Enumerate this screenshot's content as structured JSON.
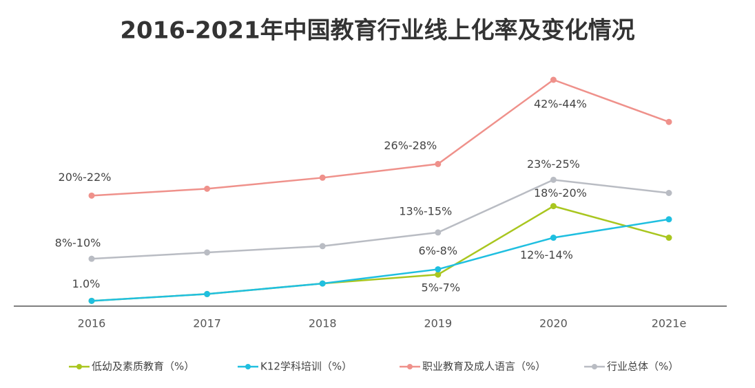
{
  "chart_data": {
    "type": "line",
    "title": "2016-2021年中国教育行业线上化率及变化情况",
    "categories": [
      "2016",
      "2017",
      "2018",
      "2019",
      "2020",
      "2021e"
    ],
    "series": [
      {
        "name": "低幼及素质教育（%）",
        "color": "#a9c61f",
        "values": [
          1.0,
          2.3,
          4.3,
          6,
          19,
          13
        ],
        "value_labels": [
          "1.0%",
          null,
          null,
          "5%-7%",
          "18%-20%",
          null
        ]
      },
      {
        "name": "K12学科培训（%）",
        "color": "#1fbfe0",
        "values": [
          1.0,
          2.3,
          4.3,
          7,
          13,
          16.5
        ],
        "value_labels": [
          null,
          null,
          null,
          "6%-8%",
          "12%-14%",
          null
        ]
      },
      {
        "name": "职业教育及成人语言（%）",
        "color": "#ef918b",
        "values": [
          21,
          22.3,
          24.4,
          27,
          43,
          35
        ],
        "value_labels": [
          "20%-22%",
          null,
          null,
          "26%-28%",
          "42%-44%",
          null
        ]
      },
      {
        "name": "行业总体（%）",
        "color": "#b9bcc3",
        "values": [
          9,
          10.2,
          11.4,
          14,
          24,
          21.5
        ],
        "value_labels": [
          "8%-10%",
          null,
          null,
          "13%-15%",
          "23%-25%",
          null
        ]
      }
    ]
  }
}
